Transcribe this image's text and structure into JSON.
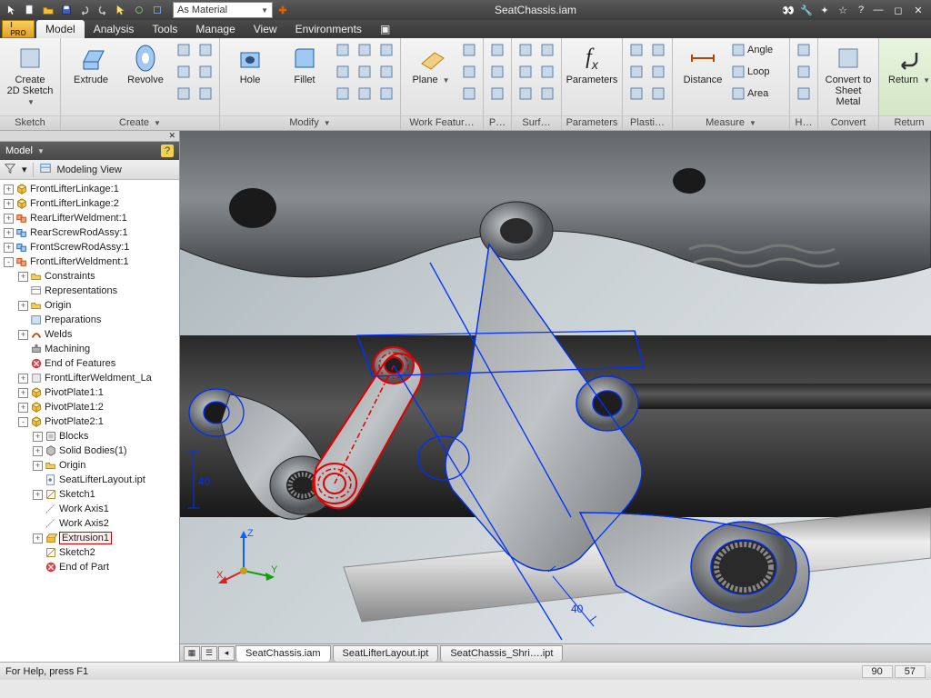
{
  "window": {
    "title": "SeatChassis.iam"
  },
  "qat": {
    "material_selector": "As Material"
  },
  "menubar": {
    "tabs": [
      "Model",
      "Analysis",
      "Tools",
      "Manage",
      "View",
      "Environments"
    ],
    "active": 0
  },
  "ribbon": {
    "groups": [
      {
        "label": "Sketch",
        "large": [
          {
            "label": "Create\n2D Sketch",
            "dd": true
          }
        ]
      },
      {
        "label": "Create",
        "dd": true,
        "large": [
          {
            "label": "Extrude"
          },
          {
            "label": "Revolve"
          }
        ],
        "smallcols": 2
      },
      {
        "label": "Modify",
        "dd": true,
        "large": [
          {
            "label": "Hole"
          },
          {
            "label": "Fillet"
          }
        ],
        "smallcols": 3
      },
      {
        "label": "Work Featur…",
        "large": [
          {
            "label": "Plane",
            "dd": true
          }
        ],
        "smallcols": 1
      },
      {
        "label": "P…",
        "smallcols": 1
      },
      {
        "label": "Surf…",
        "smallcols": 2
      },
      {
        "label": "Parameters",
        "large": [
          {
            "label": "Parameters",
            "fx": true
          }
        ]
      },
      {
        "label": "Plasti…",
        "smallcols": 2
      },
      {
        "label": "Measure",
        "dd": true,
        "large": [
          {
            "label": "Distance"
          }
        ],
        "textrows": [
          {
            "icon": "angle",
            "label": "Angle"
          },
          {
            "icon": "loop",
            "label": "Loop"
          },
          {
            "icon": "area",
            "label": "Area"
          }
        ]
      },
      {
        "label": "H…",
        "smallcols": 1
      },
      {
        "label": "Convert",
        "large": [
          {
            "label": "Convert to\nSheet Metal"
          }
        ]
      },
      {
        "label": "Return",
        "large": [
          {
            "label": "Return",
            "dd": true
          }
        ],
        "hilite": true
      }
    ]
  },
  "browser": {
    "title": "Model",
    "view_label": "Modeling View",
    "tree": [
      {
        "d": 0,
        "exp": "+",
        "ico": "cube-y",
        "label": "FrontLifterLinkage:1"
      },
      {
        "d": 0,
        "exp": "+",
        "ico": "cube-y",
        "label": "FrontLifterLinkage:2"
      },
      {
        "d": 0,
        "exp": "+",
        "ico": "asm-r",
        "label": "RearLifterWeldment:1"
      },
      {
        "d": 0,
        "exp": "+",
        "ico": "asm",
        "label": "RearScrewRodAssy:1"
      },
      {
        "d": 0,
        "exp": "+",
        "ico": "asm",
        "label": "FrontScrewRodAssy:1"
      },
      {
        "d": 0,
        "exp": "-",
        "ico": "asm-r",
        "label": "FrontLifterWeldment:1"
      },
      {
        "d": 1,
        "exp": "+",
        "ico": "fold",
        "label": "Constraints"
      },
      {
        "d": 1,
        "exp": "",
        "ico": "rep",
        "label": "Representations"
      },
      {
        "d": 1,
        "exp": "+",
        "ico": "fold",
        "label": "Origin"
      },
      {
        "d": 1,
        "exp": "",
        "ico": "prep",
        "label": "Preparations"
      },
      {
        "d": 1,
        "exp": "+",
        "ico": "weld",
        "label": "Welds"
      },
      {
        "d": 1,
        "exp": "",
        "ico": "mach",
        "label": "Machining"
      },
      {
        "d": 1,
        "exp": "",
        "ico": "end",
        "label": "End of Features"
      },
      {
        "d": 1,
        "exp": "+",
        "ico": "part",
        "label": "FrontLifterWeldment_La"
      },
      {
        "d": 1,
        "exp": "+",
        "ico": "cube-y",
        "label": "PivotPlate1:1"
      },
      {
        "d": 1,
        "exp": "+",
        "ico": "cube-y",
        "label": "PivotPlate1:2"
      },
      {
        "d": 1,
        "exp": "-",
        "ico": "cube-y",
        "label": "PivotPlate2:1"
      },
      {
        "d": 2,
        "exp": "+",
        "ico": "blk",
        "label": "Blocks"
      },
      {
        "d": 2,
        "exp": "+",
        "ico": "sol",
        "label": "Solid Bodies(1)"
      },
      {
        "d": 2,
        "exp": "+",
        "ico": "fold",
        "label": "Origin"
      },
      {
        "d": 2,
        "exp": "",
        "ico": "ipt",
        "label": "SeatLifterLayout.ipt"
      },
      {
        "d": 2,
        "exp": "+",
        "ico": "sk",
        "label": "Sketch1"
      },
      {
        "d": 2,
        "exp": "",
        "ico": "ax",
        "label": "Work Axis1"
      },
      {
        "d": 2,
        "exp": "",
        "ico": "ax",
        "label": "Work Axis2"
      },
      {
        "d": 2,
        "exp": "+",
        "ico": "ext",
        "label": "Extrusion1",
        "hilite": true
      },
      {
        "d": 2,
        "exp": "",
        "ico": "sk",
        "label": "Sketch2"
      },
      {
        "d": 2,
        "exp": "",
        "ico": "end",
        "label": "End of Part"
      }
    ]
  },
  "doctabs": {
    "tabs": [
      {
        "label": "SeatChassis.iam",
        "active": true
      },
      {
        "label": "SeatLifterLayout.ipt"
      },
      {
        "label": "SeatChassis_Shri….ipt"
      }
    ]
  },
  "status": {
    "help": "For Help, press F1",
    "coord1": "90",
    "coord2": "57"
  },
  "triad": {
    "x": "X",
    "y": "Y",
    "z": "Z"
  },
  "dims": {
    "d1": "40",
    "d2": "40"
  },
  "colors": {
    "sketch_blue": "#0030ff",
    "select_red": "#e00000",
    "metal_mid": "#8a8e90",
    "metal_light": "#c8ccce",
    "metal_dark": "#4a4e50"
  }
}
